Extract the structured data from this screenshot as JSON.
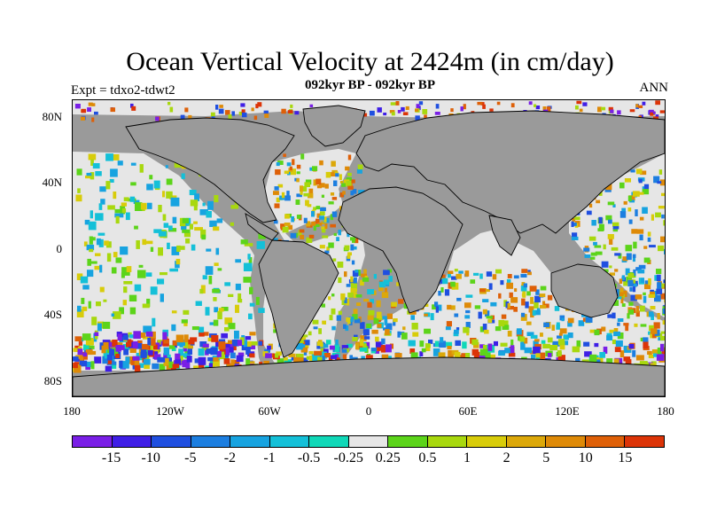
{
  "figure": {
    "title": "Ocean Vertical Velocity at 2424m (in cm/day)",
    "subtitle": "092kyr BP - 092kyr BP",
    "left_note": "Expt = tdxo2-tdwt2",
    "right_note": "ANN"
  },
  "map": {
    "land_color": "#9a9a9a",
    "lat_labels": [
      "80N",
      "40N",
      "0",
      "40S",
      "80S"
    ],
    "lon_labels": [
      "180",
      "120W",
      "60W",
      "0",
      "60E",
      "120E",
      "180"
    ]
  },
  "colorbar": {
    "colors": [
      "#7a1fe6",
      "#3f1ee6",
      "#1f4fe0",
      "#1c7ee0",
      "#17a3e0",
      "#14c0d8",
      "#10d8b8",
      "#e6e6e6",
      "#5cd41a",
      "#a8d80e",
      "#d8cc0a",
      "#dca80a",
      "#de8a08",
      "#de6008",
      "#dc3408"
    ],
    "labels": [
      "-15",
      "-10",
      "-5",
      "-2",
      "-1",
      "-0.5",
      "-0.25",
      "0.25",
      "0.5",
      "1",
      "2",
      "5",
      "10",
      "15"
    ]
  }
}
